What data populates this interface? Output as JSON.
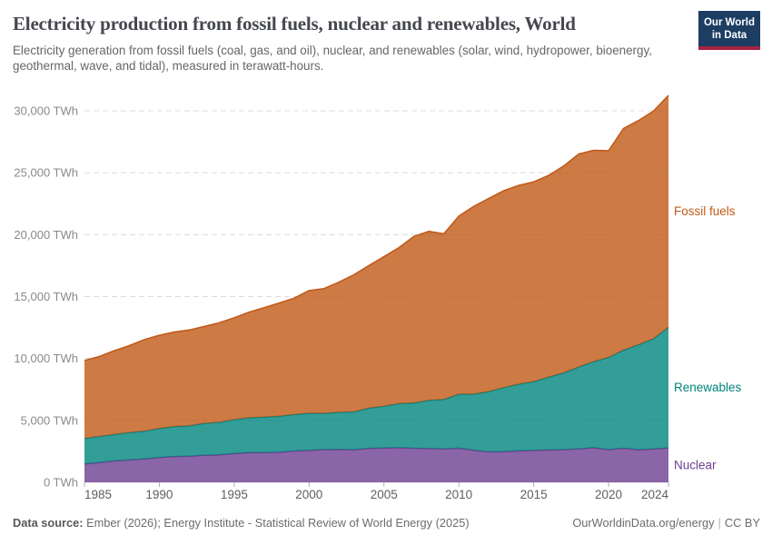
{
  "header": {
    "title": "Electricity production from fossil fuels, nuclear and renewables, World",
    "subtitle": "Electricity generation from fossil fuels (coal, gas, and oil), nuclear, and renewables (solar, wind, hydropower, bioenergy, geothermal, wave, and tidal), measured in terawatt-hours.",
    "logo": {
      "line1": "Our World",
      "line2": "in Data",
      "bg_color": "#1D3D63",
      "accent_color": "#A52442"
    }
  },
  "chart_data": {
    "type": "area",
    "stacked": true,
    "title": "Electricity production from fossil fuels, nuclear and renewables, World",
    "ylabel": "",
    "xlabel": "",
    "ylim": [
      0,
      30000
    ],
    "grid": "horizontal-dashed",
    "legend_position": "labels-at-right-edge",
    "x": [
      1985,
      1986,
      1987,
      1988,
      1989,
      1990,
      1991,
      1992,
      1993,
      1994,
      1995,
      1996,
      1997,
      1998,
      1999,
      2000,
      2001,
      2002,
      2003,
      2004,
      2005,
      2006,
      2007,
      2008,
      2009,
      2010,
      2011,
      2012,
      2013,
      2014,
      2015,
      2016,
      2017,
      2018,
      2019,
      2020,
      2021,
      2022,
      2023,
      2024
    ],
    "series": [
      {
        "name": "Nuclear",
        "color": "#6D3E91",
        "values": [
          1482,
          1592,
          1733,
          1807,
          1889,
          1992,
          2080,
          2103,
          2179,
          2218,
          2316,
          2400,
          2390,
          2425,
          2526,
          2586,
          2638,
          2654,
          2635,
          2740,
          2768,
          2793,
          2748,
          2735,
          2697,
          2756,
          2584,
          2461,
          2478,
          2535,
          2571,
          2612,
          2639,
          2701,
          2796,
          2642,
          2750,
          2632,
          2686,
          2780
        ]
      },
      {
        "name": "Renewables",
        "color": "#00847E",
        "values": [
          2064,
          2113,
          2141,
          2222,
          2237,
          2348,
          2427,
          2456,
          2580,
          2626,
          2743,
          2815,
          2866,
          2912,
          2945,
          2989,
          2932,
          3001,
          3056,
          3252,
          3380,
          3560,
          3660,
          3880,
          4000,
          4360,
          4540,
          4870,
          5170,
          5390,
          5560,
          5890,
          6200,
          6610,
          6950,
          7440,
          7920,
          8480,
          8900,
          9750
        ]
      },
      {
        "name": "Fossil fuels",
        "color": "#C05917",
        "values": [
          6298,
          6452,
          6763,
          7012,
          7407,
          7532,
          7632,
          7740,
          7825,
          8043,
          8231,
          8528,
          8852,
          9143,
          9400,
          9909,
          10077,
          10519,
          11080,
          11520,
          12080,
          12600,
          13450,
          13650,
          13370,
          14380,
          15170,
          15600,
          15900,
          16050,
          16130,
          16280,
          16700,
          17200,
          17060,
          16700,
          17900,
          18100,
          18390,
          18720
        ]
      }
    ],
    "yticks": [
      {
        "value": 0,
        "label": "0 TWh"
      },
      {
        "value": 5000,
        "label": "5,000 TWh"
      },
      {
        "value": 10000,
        "label": "10,000 TWh"
      },
      {
        "value": 15000,
        "label": "15,000 TWh"
      },
      {
        "value": 20000,
        "label": "20,000 TWh"
      },
      {
        "value": 25000,
        "label": "25,000 TWh"
      },
      {
        "value": 30000,
        "label": "30,000 TWh"
      }
    ],
    "xticks": [
      1985,
      1990,
      1995,
      2000,
      2005,
      2010,
      2015,
      2020,
      2024
    ]
  },
  "footer": {
    "source_label": "Data source:",
    "source_text": " Ember (2026); Energy Institute - Statistical Review of World Energy (2025)",
    "link": "OurWorldinData.org/energy",
    "separator": "|",
    "license": "CC BY"
  }
}
